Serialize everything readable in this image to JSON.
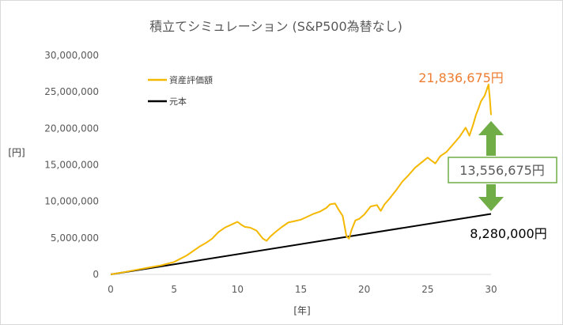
{
  "chart_data": {
    "type": "line",
    "title": "積立てシミュレーション (S&P500為替なし)",
    "xlabel": "[年]",
    "ylabel": "[円]",
    "xlim": [
      0,
      30
    ],
    "ylim": [
      0,
      30000000
    ],
    "x_ticks": [
      "0",
      "5",
      "10",
      "15",
      "20",
      "25",
      "30"
    ],
    "y_ticks": [
      "0",
      "5,000,000",
      "10,000,000",
      "15,000,000",
      "20,000,000",
      "25,000,000",
      "30,000,000"
    ],
    "legend_position": "top-left",
    "grid": false,
    "series": [
      {
        "name": "資産評価額",
        "color": "#f5b800",
        "x": [
          0,
          1,
          2,
          3,
          4,
          5,
          6,
          7,
          7.5,
          8,
          8.5,
          9,
          9.5,
          10,
          10.3,
          10.6,
          11,
          11.5,
          12,
          12.3,
          12.6,
          13,
          13.5,
          14,
          14.5,
          15,
          15.5,
          16,
          16.5,
          17,
          17.3,
          17.7,
          18,
          18.3,
          18.6,
          18.8,
          19,
          19.3,
          19.6,
          20,
          20.5,
          21,
          21.3,
          21.6,
          22,
          22.5,
          23,
          23.5,
          24,
          24.5,
          25,
          25.3,
          25.6,
          26,
          26.5,
          27,
          27.5,
          28,
          28.3,
          28.6,
          28.8,
          29,
          29.2,
          29.5,
          29.7,
          29.8,
          29.9,
          30
        ],
        "values": [
          0,
          290000,
          620000,
          930000,
          1250000,
          1700000,
          2600000,
          3800000,
          4300000,
          4900000,
          5800000,
          6400000,
          6800000,
          7200000,
          6800000,
          6500000,
          6400000,
          6000000,
          4900000,
          4600000,
          5200000,
          5800000,
          6500000,
          7100000,
          7300000,
          7500000,
          7900000,
          8300000,
          8600000,
          9100000,
          9600000,
          9700000,
          8800000,
          8000000,
          5200000,
          4900000,
          6100000,
          7400000,
          7600000,
          8200000,
          9300000,
          9500000,
          8700000,
          9600000,
          10400000,
          11500000,
          12700000,
          13600000,
          14600000,
          15300000,
          16000000,
          15600000,
          15200000,
          16200000,
          16800000,
          17800000,
          18800000,
          20100000,
          19000000,
          20600000,
          21800000,
          22700000,
          23700000,
          24500000,
          25500000,
          26000000,
          24200000,
          21836675
        ]
      },
      {
        "name": "元本",
        "color": "#000000",
        "x": [
          0,
          30
        ],
        "values": [
          0,
          8280000
        ]
      }
    ],
    "annotations": {
      "final_value": "21,836,675円",
      "difference": "13,556,675円",
      "principal": "8,280,000円"
    }
  },
  "colors": {
    "asset": "#f5b800",
    "principal": "#000000",
    "final_value_text": "#ed7d31",
    "arrow": "#70ad47",
    "difference_text": "#595959"
  }
}
